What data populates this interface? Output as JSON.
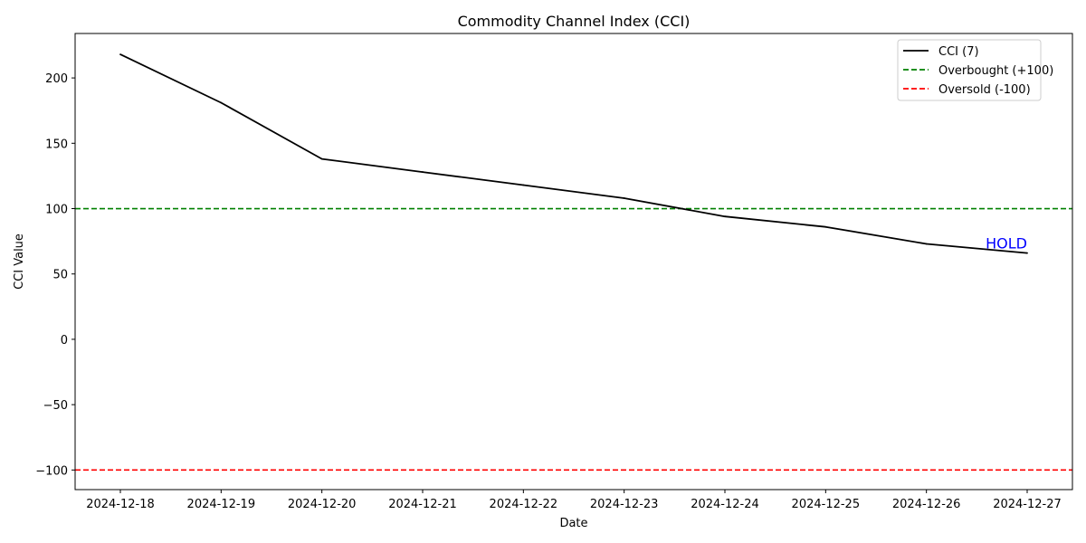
{
  "chart_data": {
    "type": "line",
    "title": "Commodity Channel Index (CCI)",
    "xlabel": "Date",
    "ylabel": "CCI Value",
    "x": [
      "2024-12-18",
      "2024-12-19",
      "2024-12-20",
      "2024-12-21",
      "2024-12-22",
      "2024-12-23",
      "2024-12-24",
      "2024-12-25",
      "2024-12-26",
      "2024-12-27"
    ],
    "y_ticks": [
      -100,
      -50,
      0,
      50,
      100,
      150,
      200
    ],
    "y_tick_labels": [
      "−100",
      "−50",
      "0",
      "50",
      "100",
      "150",
      "200"
    ],
    "ylim": [
      -115,
      234
    ],
    "grid": false,
    "legend_position": "top-right",
    "series": [
      {
        "name": "CCI (7)",
        "color": "#000000",
        "style": "solid",
        "values": [
          218,
          181,
          138,
          128,
          118,
          108,
          94,
          86,
          73,
          66
        ]
      }
    ],
    "reference_lines": [
      {
        "name": "Overbought (+100)",
        "value": 100,
        "color": "#008000",
        "style": "dashed"
      },
      {
        "name": "Oversold (-100)",
        "value": -100,
        "color": "#ff0000",
        "style": "dashed"
      }
    ],
    "annotations": [
      {
        "text": "HOLD",
        "x": "2024-12-27",
        "y": 66,
        "color": "#0000ff"
      }
    ]
  }
}
